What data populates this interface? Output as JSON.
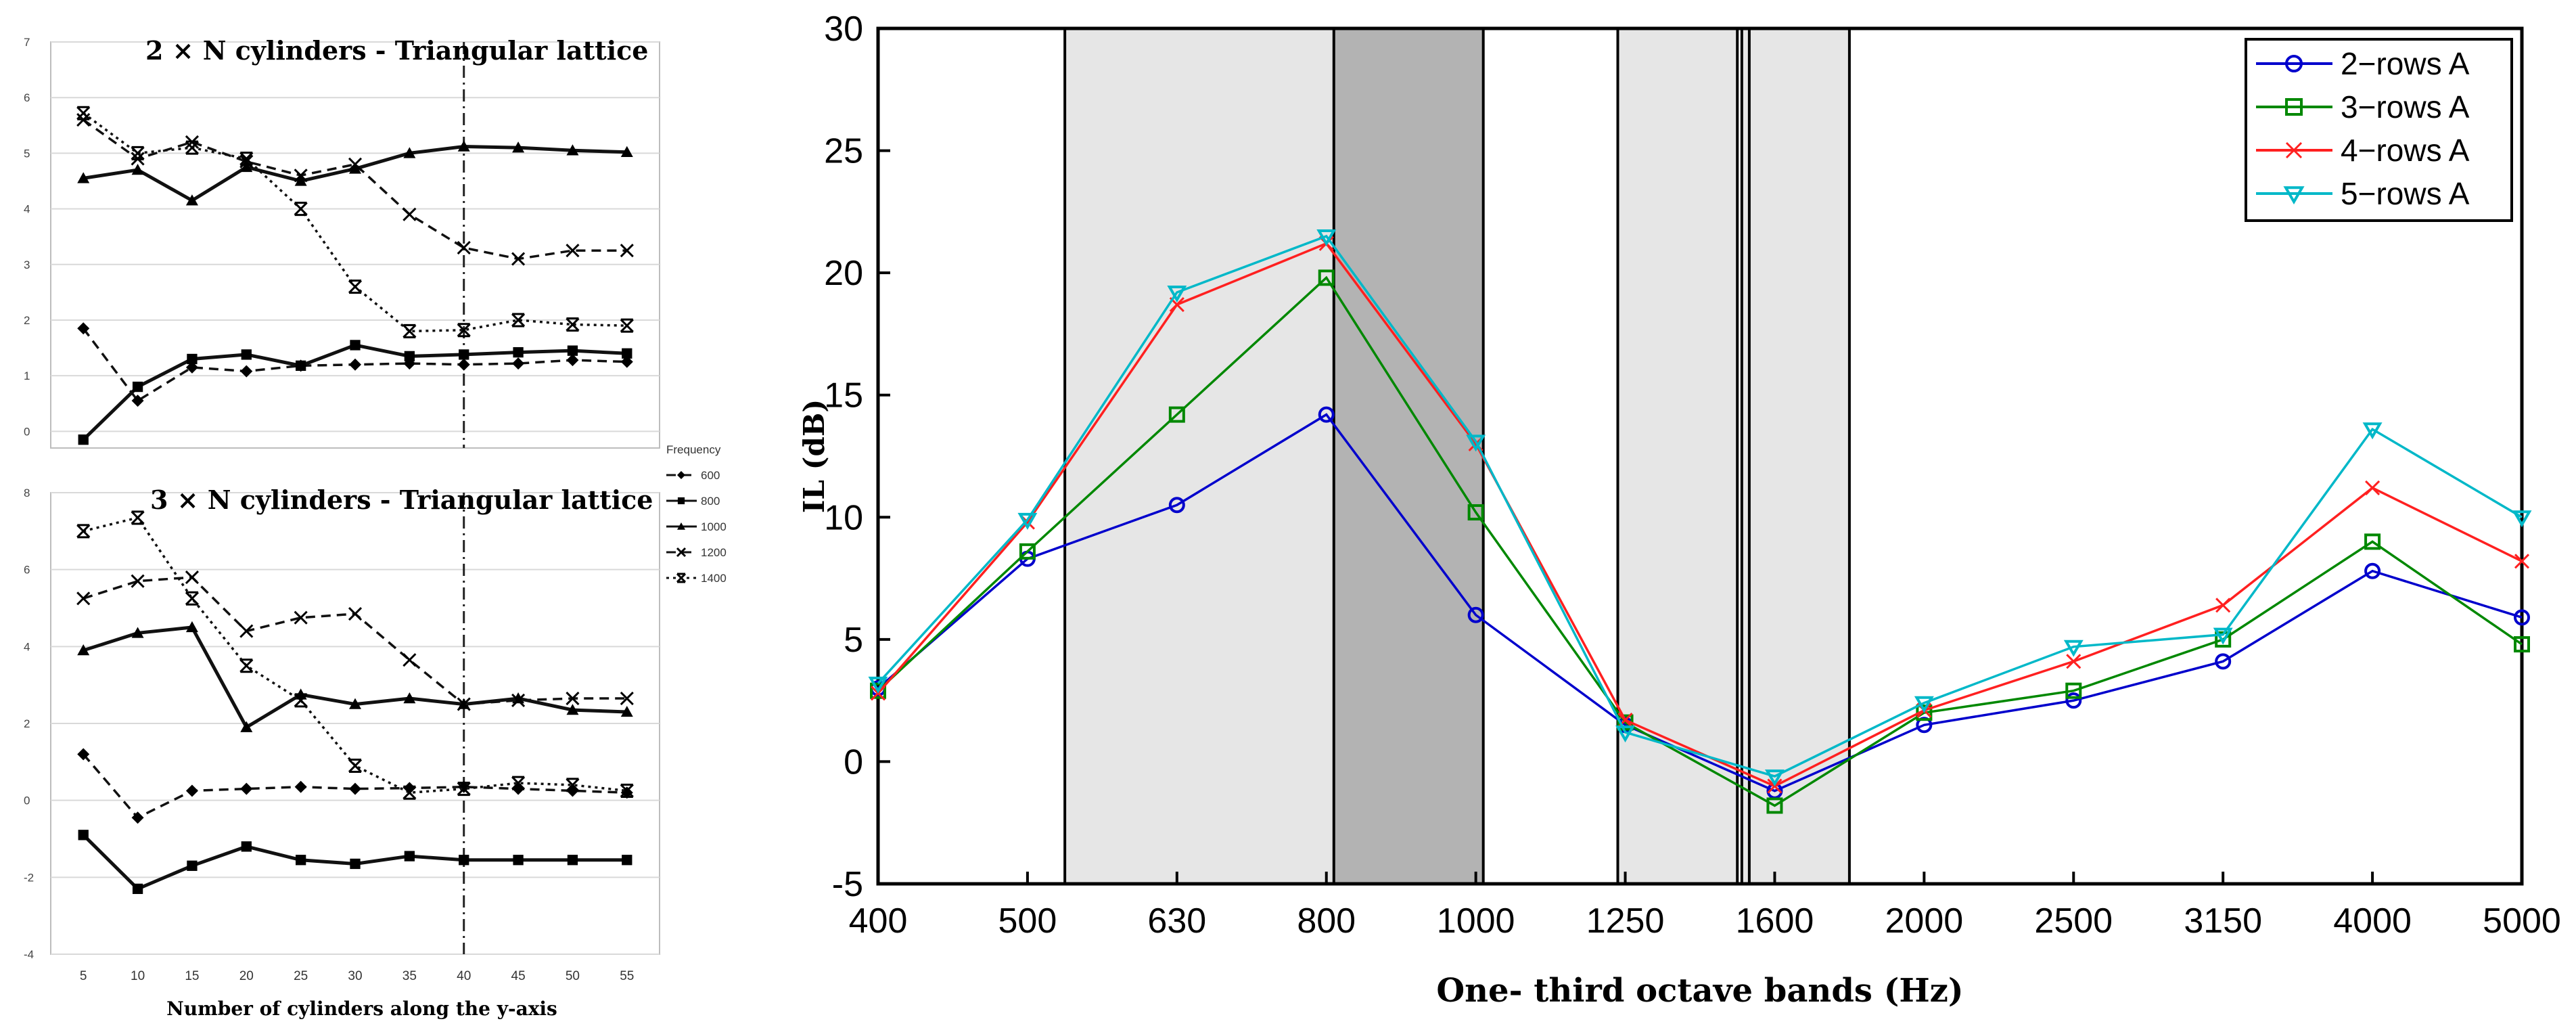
{
  "chart_data": [
    {
      "id": "p1",
      "type": "line",
      "title": "2 × N cylinders - Triangular lattice",
      "xlabel": "Number of cylinders along the y-axis",
      "ylabel": "",
      "ylim": [
        -0.3,
        7
      ],
      "yticks": [
        7,
        6,
        5,
        4,
        3,
        2,
        1,
        0
      ],
      "x": [
        5,
        10,
        15,
        20,
        25,
        30,
        35,
        40,
        45,
        50,
        55
      ],
      "xlim": [
        2,
        58
      ],
      "vline": 40,
      "series": [
        {
          "name": "600",
          "marker": "diamond",
          "line": "dash",
          "values": [
            1.85,
            0.55,
            1.15,
            1.08,
            1.18,
            1.2,
            1.22,
            1.2,
            1.22,
            1.28,
            1.25
          ]
        },
        {
          "name": "800",
          "marker": "square",
          "line": "solid",
          "values": [
            -0.15,
            0.8,
            1.3,
            1.38,
            1.18,
            1.55,
            1.35,
            1.38,
            1.42,
            1.45,
            1.4
          ]
        },
        {
          "name": "1000",
          "marker": "triangle",
          "line": "solid",
          "values": [
            4.55,
            4.7,
            4.15,
            4.75,
            4.5,
            4.72,
            5.0,
            5.12,
            5.1,
            5.05,
            5.02
          ]
        },
        {
          "name": "1200",
          "marker": "x",
          "line": "dash",
          "values": [
            5.6,
            4.9,
            5.2,
            4.85,
            4.6,
            4.8,
            3.9,
            3.3,
            3.1,
            3.25,
            3.25
          ]
        },
        {
          "name": "1400",
          "marker": "xbar",
          "line": "dot",
          "values": [
            5.72,
            5.0,
            5.1,
            4.9,
            4.0,
            2.6,
            1.8,
            1.82,
            2.0,
            1.92,
            1.9
          ]
        }
      ]
    },
    {
      "id": "p2",
      "type": "line",
      "title": "3 × N cylinders - Triangular lattice",
      "xlabel": "Number of cylinders along the y-axis",
      "ylabel": "",
      "ylim": [
        -4,
        8
      ],
      "yticks": [
        8,
        6,
        4,
        2,
        0,
        -2,
        -4
      ],
      "x": [
        5,
        10,
        15,
        20,
        25,
        30,
        35,
        40,
        45,
        50,
        55
      ],
      "xticks": [
        "5",
        "10",
        "15",
        "20",
        "25",
        "30",
        "35",
        "40",
        "45",
        "50",
        "55"
      ],
      "xlim": [
        2,
        58
      ],
      "vline": 40,
      "series": [
        {
          "name": "600",
          "marker": "diamond",
          "line": "dash",
          "values": [
            1.2,
            -0.45,
            0.25,
            0.3,
            0.35,
            0.3,
            0.32,
            0.35,
            0.3,
            0.25,
            0.2
          ]
        },
        {
          "name": "800",
          "marker": "square",
          "line": "solid",
          "values": [
            -0.9,
            -2.3,
            -1.7,
            -1.2,
            -1.55,
            -1.65,
            -1.45,
            -1.55,
            -1.55,
            -1.55,
            -1.55
          ]
        },
        {
          "name": "1000",
          "marker": "triangle",
          "line": "solid",
          "values": [
            3.9,
            4.35,
            4.5,
            1.9,
            2.75,
            2.5,
            2.65,
            2.5,
            2.65,
            2.35,
            2.3
          ]
        },
        {
          "name": "1200",
          "marker": "x",
          "line": "dash",
          "values": [
            5.25,
            5.7,
            5.8,
            4.4,
            4.75,
            4.85,
            3.65,
            2.5,
            2.6,
            2.65,
            2.65
          ]
        },
        {
          "name": "1400",
          "marker": "xbar",
          "line": "dot",
          "values": [
            7.0,
            7.35,
            5.25,
            3.5,
            2.6,
            0.9,
            0.2,
            0.3,
            0.45,
            0.4,
            0.25
          ]
        }
      ]
    },
    {
      "id": "p3",
      "type": "line",
      "title": "",
      "xlabel": "One- third octave bands (Hz)",
      "ylabel": "IL (dB)",
      "ylim": [
        -5,
        30
      ],
      "yticks": [
        30,
        25,
        20,
        15,
        10,
        5,
        0,
        -5
      ],
      "categories": [
        "400",
        "500",
        "630",
        "800",
        "1000",
        "1250",
        "1600",
        "2000",
        "2500",
        "3150",
        "4000",
        "5000"
      ],
      "shaded_bands": [
        {
          "from": 1.25,
          "to": 3.05,
          "shade": "light"
        },
        {
          "from": 3.05,
          "to": 4.05,
          "shade": "dark"
        },
        {
          "from": 4.95,
          "to": 5.75,
          "shade": "light"
        },
        {
          "from": 5.78,
          "to": 6.5,
          "shade": "light"
        }
      ],
      "band_edges": [
        1.25,
        3.05,
        4.05,
        4.95,
        5.75,
        5.78,
        5.83,
        6.5
      ],
      "legend_position": "top-right",
      "series": [
        {
          "name": "2−rows A",
          "color": "#0000cc",
          "marker": "circle",
          "values": [
            3.0,
            8.3,
            10.5,
            14.2,
            6.0,
            1.5,
            -1.2,
            1.5,
            2.5,
            4.1,
            7.8,
            5.9
          ]
        },
        {
          "name": "3−rows A",
          "color": "#008800",
          "marker": "square",
          "values": [
            2.9,
            8.6,
            14.2,
            19.8,
            10.2,
            1.6,
            -1.8,
            2.0,
            2.9,
            5.0,
            9.0,
            4.8
          ]
        },
        {
          "name": "4−rows A",
          "color": "#ff2020",
          "marker": "x",
          "values": [
            2.8,
            9.8,
            18.7,
            21.2,
            13.0,
            1.7,
            -1.0,
            2.1,
            4.1,
            6.4,
            11.2,
            8.2
          ]
        },
        {
          "name": "5−rows A",
          "color": "#00b8c8",
          "marker": "tri-down",
          "values": [
            3.2,
            9.9,
            19.2,
            21.5,
            13.1,
            1.2,
            -0.6,
            2.4,
            4.7,
            5.2,
            13.6,
            10.0
          ]
        }
      ]
    }
  ],
  "legend_small": {
    "title": "Frequency",
    "labels": [
      "600",
      "800",
      "1000",
      "1200",
      "1400"
    ]
  }
}
